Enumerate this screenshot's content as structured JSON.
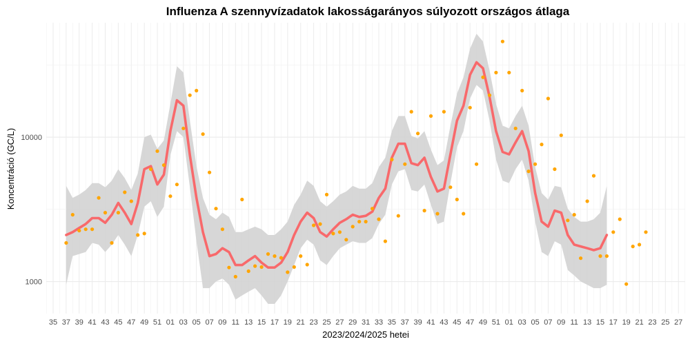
{
  "chart_data": {
    "type": "line",
    "title": "Influenza A szennyvízadatok lakosságarányos súlyozott országos átlaga",
    "xlabel": "2023/2024/2025 hetei",
    "ylabel": "Koncentráció (GC/L)",
    "y_scale": "log10",
    "ylim": [
      600,
      62000
    ],
    "y_ticks": [
      1000,
      10000
    ],
    "y_tick_labels": [
      "1000",
      "10000"
    ],
    "x_tick_labels": [
      "35",
      "37",
      "39",
      "41",
      "43",
      "45",
      "47",
      "49",
      "51",
      "01",
      "03",
      "05",
      "07",
      "09",
      "11",
      "13",
      "15",
      "17",
      "19",
      "21",
      "23",
      "25",
      "27",
      "29",
      "31",
      "33",
      "35",
      "37",
      "39",
      "41",
      "43",
      "45",
      "47",
      "49",
      "51",
      "01",
      "03",
      "05",
      "07",
      "09",
      "11",
      "13",
      "15",
      "17",
      "19",
      "21",
      "23",
      "25",
      "27"
    ],
    "grid": true,
    "colors": {
      "trend": "#f8696b",
      "points": "#ffa500",
      "band": "#d3d3d3",
      "grid": "#ebebeb",
      "grid_minor": "#f2f2f2"
    },
    "weeks": [
      "39",
      "40",
      "41",
      "42",
      "43",
      "44",
      "45",
      "46",
      "47",
      "48",
      "49",
      "50",
      "51",
      "52",
      "01",
      "02",
      "03",
      "04",
      "05",
      "06",
      "07",
      "08",
      "09",
      "10",
      "11",
      "12",
      "13",
      "14",
      "15",
      "16",
      "17",
      "18",
      "19",
      "20",
      "21",
      "22",
      "23",
      "24",
      "25",
      "26",
      "27",
      "28",
      "29",
      "30",
      "31",
      "32",
      "33",
      "34",
      "35",
      "36",
      "37",
      "38",
      "39",
      "40",
      "41",
      "42",
      "43",
      "44",
      "45",
      "46",
      "47",
      "48",
      "49",
      "50",
      "51",
      "52",
      "01",
      "02",
      "03",
      "04",
      "05",
      "06",
      "07",
      "08",
      "09",
      "10",
      "11",
      "12",
      "13",
      "14",
      "15",
      "16",
      "17",
      "18",
      "19",
      "20",
      "21",
      "22",
      "23",
      "24"
    ],
    "series": [
      {
        "kind": "trend",
        "values": [
          2100,
          2200,
          2350,
          2500,
          2750,
          2750,
          2550,
          2900,
          3500,
          3000,
          2500,
          3500,
          6000,
          6300,
          4700,
          5500,
          11000,
          18000,
          16500,
          7500,
          3800,
          2200,
          1500,
          1550,
          1700,
          1600,
          1300,
          1300,
          1400,
          1500,
          1350,
          1250,
          1250,
          1350,
          1600,
          2100,
          2600,
          3000,
          2750,
          2200,
          2050,
          2300,
          2550,
          2700,
          2900,
          2800,
          2850,
          3050,
          3800,
          4400,
          7200,
          9000,
          9000,
          6600,
          6400,
          7200,
          5300,
          4200,
          4400,
          7600,
          13000,
          16500,
          27000,
          33000,
          30000,
          19000,
          11000,
          7900,
          7600,
          9200,
          11000,
          8000,
          4100,
          2600,
          2400,
          3100,
          3000,
          2100,
          1800,
          1750,
          1700,
          1650,
          1700,
          2100
        ],
        "lower": [
          950,
          1500,
          1550,
          1600,
          1850,
          1800,
          1600,
          1800,
          2100,
          1800,
          1500,
          2100,
          3300,
          3600,
          2800,
          3300,
          7500,
          11000,
          10000,
          4500,
          1900,
          900,
          900,
          1000,
          1050,
          950,
          750,
          800,
          850,
          900,
          800,
          700,
          700,
          800,
          1000,
          1300,
          1700,
          1950,
          1800,
          1400,
          1300,
          1500,
          1700,
          1800,
          1900,
          1850,
          1850,
          2000,
          2500,
          2900,
          4700,
          5800,
          6000,
          4300,
          4200,
          4700,
          3400,
          2500,
          2600,
          4800,
          8500,
          11000,
          18500,
          23000,
          21000,
          13000,
          7000,
          5000,
          4800,
          6000,
          7000,
          5000,
          2600,
          1600,
          1500,
          1900,
          1800,
          1200,
          1100,
          1000,
          950,
          900,
          900,
          950
        ],
        "upper": [
          4600,
          3800,
          4000,
          4300,
          4800,
          4800,
          4500,
          5000,
          6000,
          5200,
          4300,
          5600,
          10000,
          10400,
          8300,
          9500,
          17000,
          31000,
          28000,
          13000,
          6300,
          3800,
          2900,
          2700,
          3000,
          2800,
          2200,
          2200,
          2300,
          2400,
          2300,
          2100,
          2100,
          2300,
          2600,
          3400,
          4000,
          5000,
          4600,
          3600,
          3300,
          3600,
          4000,
          4200,
          4600,
          4400,
          4400,
          4800,
          6200,
          7200,
          11000,
          14000,
          14000,
          10200,
          9800,
          11000,
          8200,
          6400,
          6900,
          12000,
          20000,
          26000,
          41000,
          52000,
          46000,
          29000,
          17000,
          12000,
          11500,
          14000,
          16500,
          12000,
          6200,
          4100,
          3700,
          4600,
          4500,
          3200,
          2800,
          2600,
          2600,
          2700,
          3000,
          4600
        ]
      },
      {
        "kind": "points",
        "values": [
          1850,
          2900,
          2250,
          2300,
          2300,
          3800,
          3000,
          1850,
          3000,
          4150,
          3600,
          2100,
          2150,
          6000,
          8000,
          6400,
          3900,
          4700,
          11500,
          19500,
          21000,
          10500,
          5700,
          3200,
          2300,
          1250,
          1080,
          3700,
          1180,
          1280,
          1260,
          1550,
          1500,
          1460,
          1160,
          1260,
          1500,
          1310,
          2450,
          2500,
          4000,
          2150,
          2200,
          1950,
          2400,
          2600,
          2600,
          3200,
          2700,
          1900,
          7000,
          2850,
          6500,
          15000,
          10600,
          3100,
          14000,
          2950,
          15000,
          4500,
          3700,
          2950,
          16000,
          6500,
          26000,
          19500,
          28000,
          46000,
          28000,
          11500,
          21000,
          5800,
          6500,
          8900,
          18500,
          6000,
          10300,
          2650,
          2900,
          1450,
          3600,
          5400,
          1500,
          1500,
          2200,
          2700,
          960,
          1750,
          1800,
          2200
        ]
      }
    ]
  }
}
